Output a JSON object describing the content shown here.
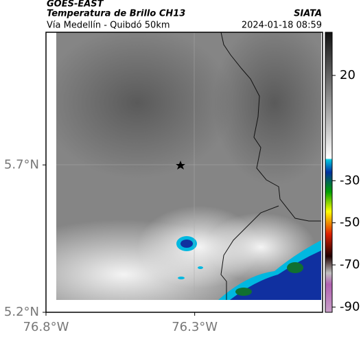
{
  "header": {
    "title": "GOES-EAST",
    "subtitle": "Temperatura de Brillo CH13",
    "source": "SIATA",
    "region": "Vía Medellín - Quibdó 50km",
    "timestamp": "2024-01-18 08:59"
  },
  "map": {
    "xlim": [
      -76.8,
      -75.87
    ],
    "ylim": [
      5.2,
      6.15
    ],
    "xticks": [
      {
        "value": -76.8,
        "label": "76.8°W"
      },
      {
        "value": -76.3,
        "label": "76.3°W"
      }
    ],
    "yticks": [
      {
        "value": 5.2,
        "label": "5.2°N"
      },
      {
        "value": 5.7,
        "label": "5.7°N"
      }
    ]
  },
  "colorbar": {
    "lim": [
      -92.5,
      40.5
    ],
    "ticks": [
      20,
      -30,
      -50,
      -70,
      -90
    ]
  }
}
